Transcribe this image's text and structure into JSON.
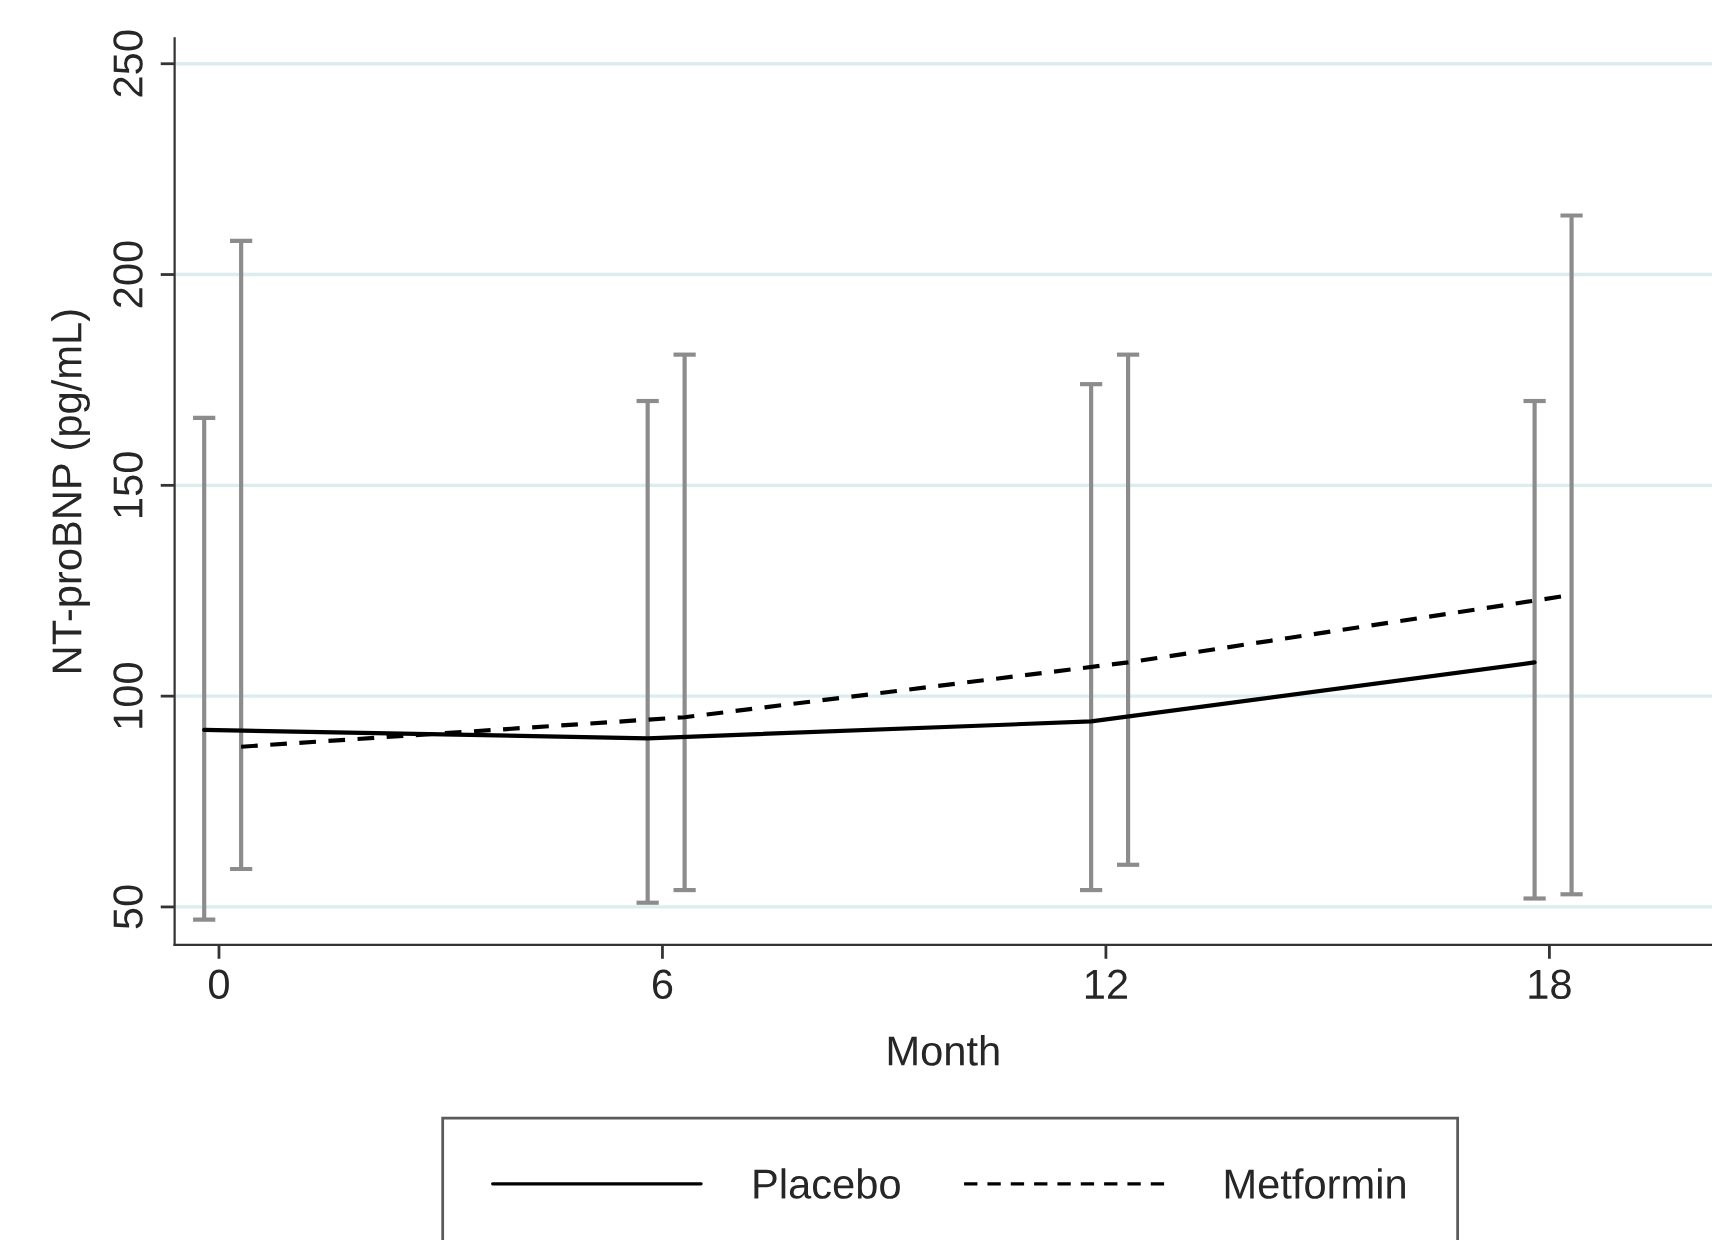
{
  "chart_data": {
    "type": "line",
    "xlabel": "Month",
    "ylabel": "NT-proBNP (pg/mL)",
    "xlim": [
      -0.6,
      20.2
    ],
    "xticks": [
      0,
      6,
      12,
      18
    ],
    "ylim": [
      41,
      256
    ],
    "yticks": [
      50,
      100,
      150,
      200,
      250
    ],
    "grid": "y",
    "legend": "bottom",
    "marker": "none",
    "series": [
      {
        "name": "Placebo",
        "color": "#000000",
        "line_style": "solid",
        "x": [
          -0.2,
          5.8,
          11.8,
          17.8
        ],
        "values": [
          92,
          90,
          94,
          108
        ],
        "errors": [
          [
            47,
            166
          ],
          [
            51,
            170
          ],
          [
            54,
            174
          ],
          [
            52,
            170
          ]
        ]
      },
      {
        "name": "Metformin",
        "color": "#000000",
        "line_style": "dashed",
        "x": [
          0.3,
          6.3,
          12.3,
          18.3
        ],
        "values": [
          88,
          95,
          108,
          124
        ],
        "errors": [
          [
            59,
            208
          ],
          [
            54,
            181
          ],
          [
            60,
            181
          ],
          [
            53,
            214
          ]
        ]
      }
    ]
  }
}
